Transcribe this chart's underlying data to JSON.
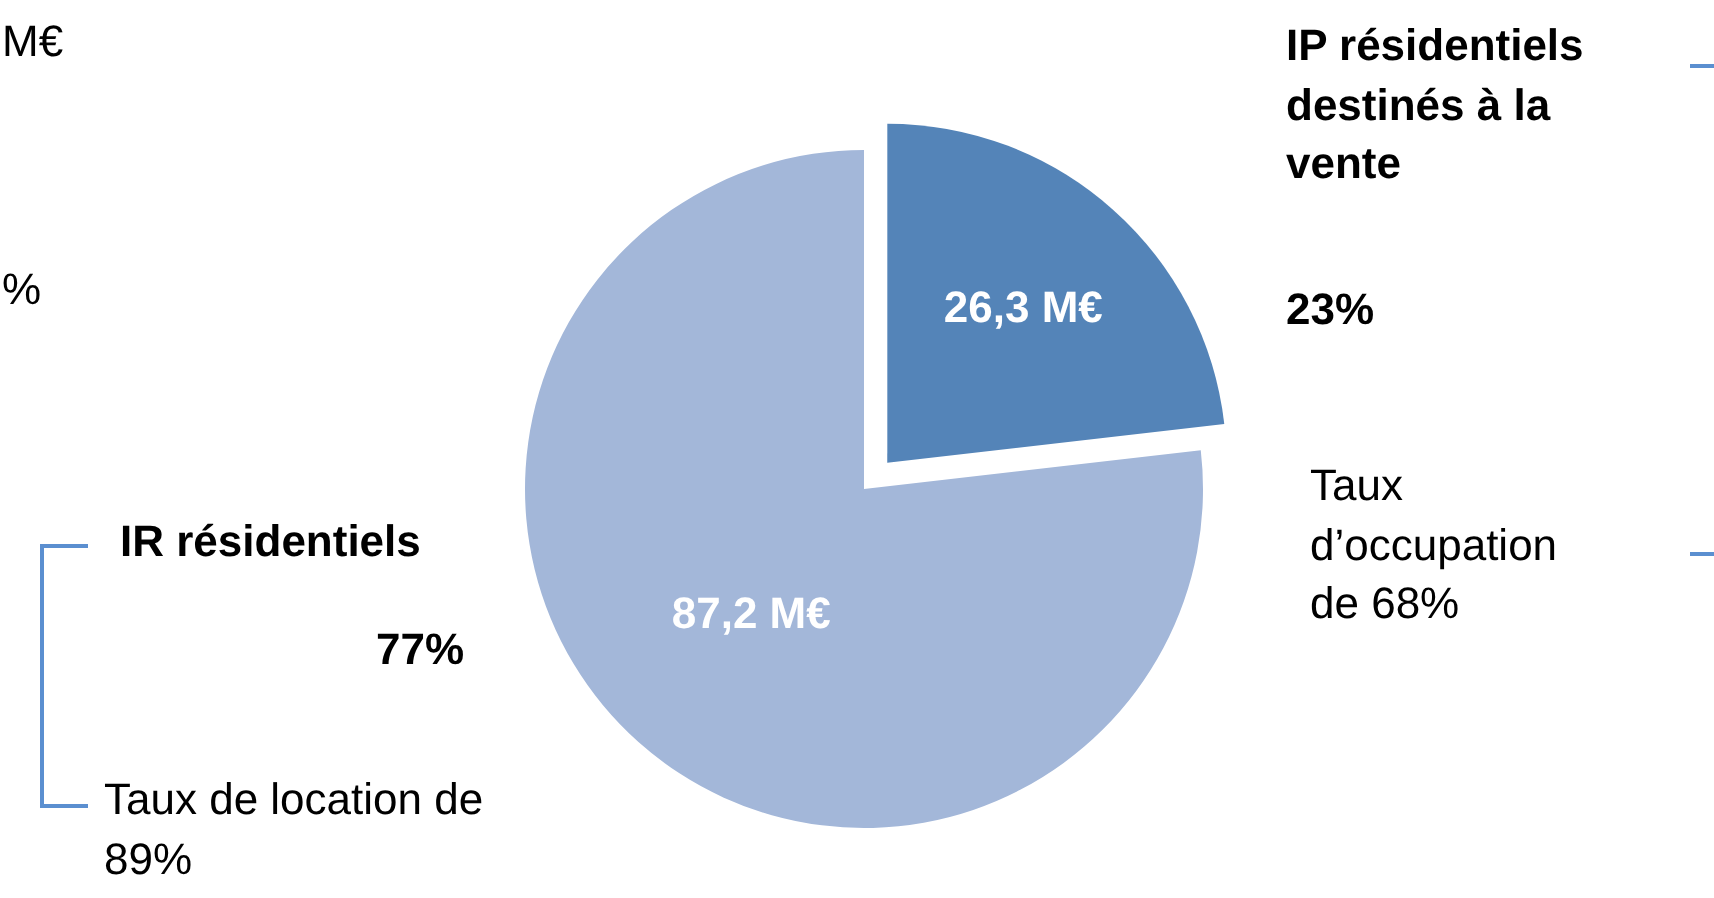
{
  "chart_data": {
    "type": "pie",
    "categories": [
      "IP résidentiels destinés à la vente",
      "IR résidentiels"
    ],
    "values": [
      26.3,
      87.2
    ],
    "colors": [
      "#5484b8",
      "#a3b7d9"
    ],
    "value_labels": [
      "26,3 M€",
      "87,2 M€"
    ],
    "legend": false,
    "annotations": [
      "M€",
      "%",
      "23%",
      "77%",
      "Taux d’occupation de 68%",
      "Taux de location de 89%"
    ]
  }
}
